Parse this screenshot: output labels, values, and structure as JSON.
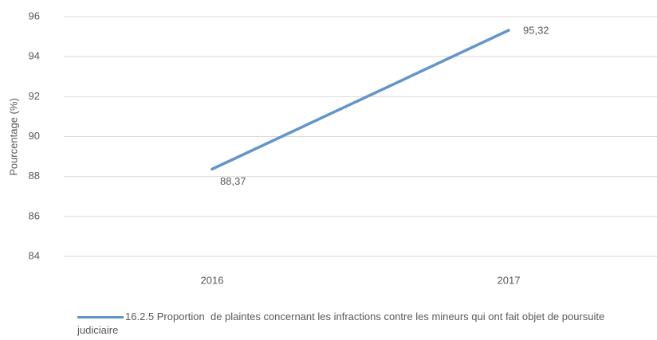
{
  "chart_data": {
    "type": "line",
    "y_label": "Pourcentage (%)",
    "categories": [
      "2016",
      "2017"
    ],
    "series": [
      {
        "name": "16.2.5 Proportion  de plaintes concernant les infractions contre les mineurs qui ont fait objet de poursuite judiciaire",
        "color": "#6295c9",
        "values": [
          88.37,
          95.32
        ],
        "value_labels": [
          "88,37",
          "95,32"
        ]
      }
    ],
    "ylim": [
      84,
      96
    ],
    "yticks": [
      84,
      86,
      88,
      90,
      92,
      94,
      96
    ],
    "grid": true,
    "legend": "bottom"
  }
}
